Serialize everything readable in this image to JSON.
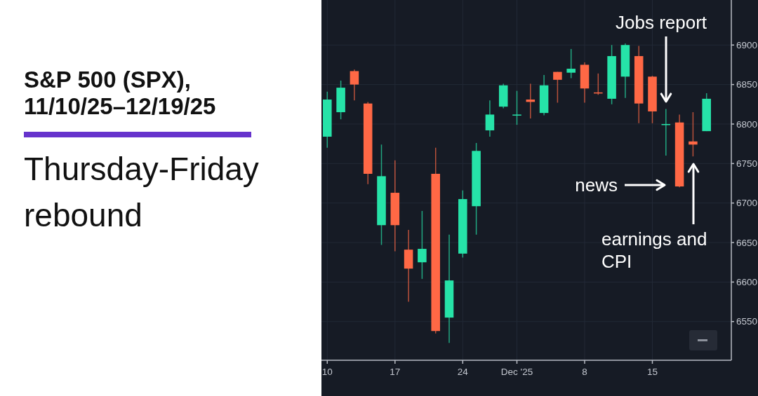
{
  "chart_data": {
    "type": "candlestick",
    "title": "S&P 500 (SPX), 11/10/25–12/19/25",
    "subtitle": "Thursday-Friday rebound",
    "categories": [
      "10",
      null,
      null,
      null,
      null,
      "17",
      null,
      null,
      null,
      null,
      "24",
      null,
      null,
      null,
      "Dec '25",
      null,
      null,
      null,
      null,
      "8",
      null,
      null,
      null,
      null,
      "15",
      null,
      null,
      null,
      null
    ],
    "ohlc": [
      [
        6784,
        6841,
        6770,
        6831
      ],
      [
        6815,
        6855,
        6806,
        6846
      ],
      [
        6867,
        6869,
        6830,
        6850
      ],
      [
        6826,
        6828,
        6724,
        6737
      ],
      [
        6672,
        6774,
        6647,
        6734
      ],
      [
        6713,
        6754,
        6639,
        6672
      ],
      [
        6641,
        6666,
        6575,
        6617
      ],
      [
        6625,
        6690,
        6604,
        6642
      ],
      [
        6737,
        6770,
        6535,
        6538
      ],
      [
        6555,
        6660,
        6523,
        6602
      ],
      [
        6636,
        6716,
        6631,
        6705
      ],
      [
        6696,
        6776,
        6660,
        6766
      ],
      [
        6792,
        6830,
        6784,
        6812
      ],
      [
        6822,
        6851,
        6820,
        6849
      ],
      [
        6811,
        6842,
        6799,
        6812
      ],
      [
        6831,
        6851,
        6807,
        6828
      ],
      [
        6814,
        6862,
        6811,
        6849
      ],
      [
        6866,
        6866,
        6827,
        6856
      ],
      [
        6865,
        6895,
        6858,
        6870
      ],
      [
        6875,
        6878,
        6827,
        6845
      ],
      [
        6840,
        6864,
        6837,
        6839
      ],
      [
        6832,
        6900,
        6825,
        6886
      ],
      [
        6860,
        6902,
        6833,
        6900
      ],
      [
        6886,
        6899,
        6801,
        6826
      ],
      [
        6860,
        6861,
        6801,
        6816
      ],
      [
        6799,
        6819,
        6760,
        6800
      ],
      [
        6802,
        6812,
        6720,
        6721
      ],
      [
        6778,
        6815,
        6759,
        6774
      ],
      [
        6791,
        6839,
        6791,
        6832
      ]
    ],
    "colors": [
      "#26e3a8",
      "#26e3a8",
      "#ff6845",
      "#ff6845",
      "#26e3a8",
      "#ff6845",
      "#ff6845",
      "#26e3a8",
      "#ff6845",
      "#26e3a8",
      "#26e3a8",
      "#26e3a8",
      "#26e3a8",
      "#26e3a8",
      "#26e3a8",
      "#ff6845",
      "#26e3a8",
      "#ff6845",
      "#26e3a8",
      "#ff6845",
      "#ff6845",
      "#26e3a8",
      "#26e3a8",
      "#ff6845",
      "#ff6845",
      "#26e3a8",
      "#ff6845",
      "#ff6845",
      "#26e3a8"
    ],
    "ylim": [
      6501,
      6957
    ],
    "yticks": [
      6550,
      6600,
      6650,
      6700,
      6750,
      6800,
      6850,
      6900
    ],
    "grid": true,
    "annotations": [
      "Jobs report",
      "news",
      "earnings and CPI"
    ]
  }
}
